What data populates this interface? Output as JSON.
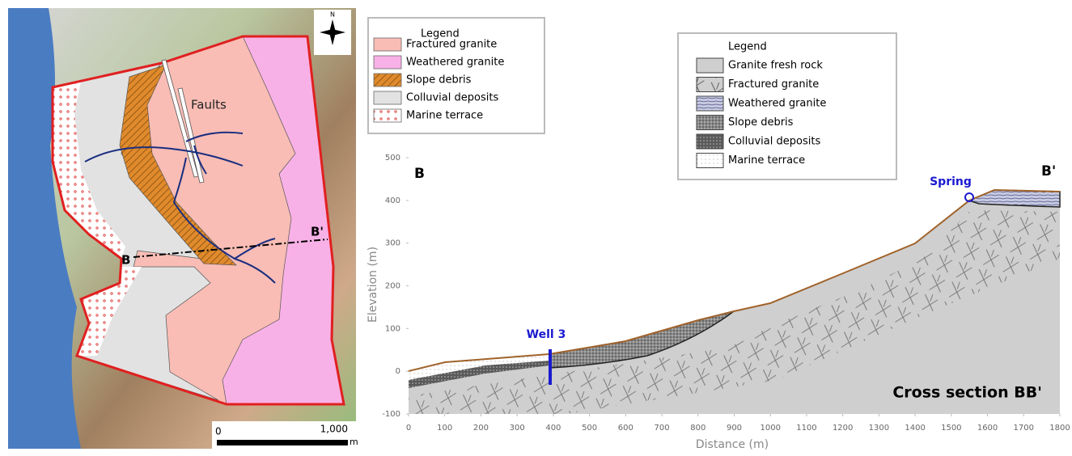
{
  "map": {
    "north_label": "N",
    "faults_label": "Faults",
    "section_start": "B",
    "section_end": "B'",
    "scale_bar": {
      "start": "0",
      "end": "1,000",
      "unit": "m"
    }
  },
  "map_legend": {
    "title": "Legend",
    "items": [
      {
        "label": "Fractured granite",
        "color": "#f9bdb5"
      },
      {
        "label": "Weathered granite",
        "color": "#f8b1e6"
      },
      {
        "label": "Slope debris",
        "color": "#e08a2c"
      },
      {
        "label": "Colluvial deposits",
        "color": "#e2e2e2"
      },
      {
        "label": "Marine terrace",
        "color": "#ffffff"
      }
    ]
  },
  "section_legend": {
    "title": "Legend",
    "items": [
      {
        "label": "Granite fresh rock"
      },
      {
        "label": "Fractured granite"
      },
      {
        "label": "Weathered granite"
      },
      {
        "label": "Slope debris"
      },
      {
        "label": "Colluvial deposits"
      },
      {
        "label": "Marine terrace"
      }
    ]
  },
  "cross_section": {
    "title": "Cross section BB'",
    "x_label": "Distance (m)",
    "y_label": "Elevation (m)",
    "start_label": "B",
    "end_label": "B'",
    "well_label": "Well 3",
    "spring_label": "Spring",
    "xlim": [
      0,
      1800
    ],
    "ylim": [
      -100,
      500
    ],
    "xticks": [
      0,
      100,
      200,
      300,
      400,
      500,
      600,
      700,
      800,
      900,
      1000,
      1100,
      1200,
      1300,
      1400,
      1500,
      1600,
      1700,
      1800
    ],
    "yticks": [
      -100,
      0,
      100,
      200,
      300,
      400,
      500
    ]
  }
}
